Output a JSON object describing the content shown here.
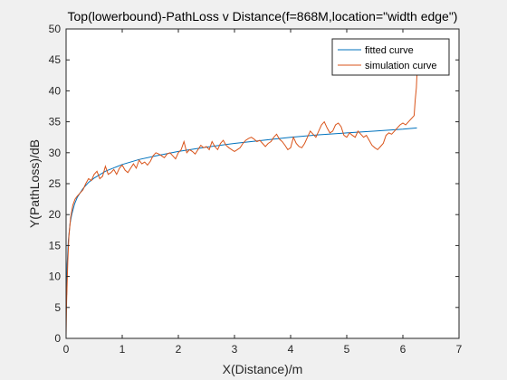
{
  "chart_data": {
    "type": "line",
    "title": "Top(lowerbound)-PathLoss v Distance(f=868M,location=\"width edge\")",
    "xlabel": "X(Distance)/m",
    "ylabel": "Y(PathLoss)/dB",
    "xlim": [
      0,
      7
    ],
    "ylim": [
      0,
      50
    ],
    "xticks": [
      0,
      1,
      2,
      3,
      4,
      5,
      6,
      7
    ],
    "yticks": [
      0,
      5,
      10,
      15,
      20,
      25,
      30,
      35,
      40,
      45,
      50
    ],
    "grid": false,
    "legend_position": "top-right",
    "series": [
      {
        "name": "fitted curve",
        "color": "#0072BD",
        "x": [
          0.01,
          0.02,
          0.04,
          0.07,
          0.1,
          0.15,
          0.2,
          0.3,
          0.4,
          0.5,
          0.7,
          1.0,
          1.3,
          1.6,
          2.0,
          2.5,
          3.0,
          3.5,
          4.0,
          4.5,
          5.0,
          5.5,
          6.0,
          6.25
        ],
        "y": [
          7.0,
          12.0,
          15.8,
          18.5,
          20.0,
          21.7,
          22.8,
          24.2,
          25.2,
          25.9,
          27.0,
          28.1,
          28.9,
          29.5,
          30.2,
          30.9,
          31.5,
          32.0,
          32.5,
          32.9,
          33.2,
          33.5,
          33.8,
          34.0
        ]
      },
      {
        "name": "simulation curve",
        "color": "#D95319",
        "x": [
          0.0,
          0.01,
          0.03,
          0.05,
          0.08,
          0.12,
          0.16,
          0.2,
          0.25,
          0.3,
          0.35,
          0.4,
          0.45,
          0.5,
          0.55,
          0.6,
          0.65,
          0.7,
          0.75,
          0.8,
          0.85,
          0.9,
          0.95,
          1.0,
          1.05,
          1.1,
          1.15,
          1.2,
          1.25,
          1.3,
          1.35,
          1.4,
          1.45,
          1.5,
          1.55,
          1.6,
          1.65,
          1.7,
          1.75,
          1.8,
          1.85,
          1.9,
          1.95,
          2.0,
          2.05,
          2.1,
          2.15,
          2.2,
          2.25,
          2.3,
          2.35,
          2.4,
          2.45,
          2.5,
          2.55,
          2.6,
          2.65,
          2.7,
          2.75,
          2.8,
          2.85,
          2.9,
          2.95,
          3.0,
          3.05,
          3.1,
          3.15,
          3.2,
          3.25,
          3.3,
          3.35,
          3.4,
          3.45,
          3.5,
          3.55,
          3.6,
          3.65,
          3.7,
          3.75,
          3.8,
          3.85,
          3.9,
          3.95,
          4.0,
          4.05,
          4.1,
          4.15,
          4.2,
          4.25,
          4.3,
          4.35,
          4.4,
          4.45,
          4.5,
          4.55,
          4.6,
          4.65,
          4.7,
          4.75,
          4.8,
          4.85,
          4.9,
          4.95,
          5.0,
          5.05,
          5.1,
          5.15,
          5.2,
          5.25,
          5.3,
          5.35,
          5.4,
          5.45,
          5.5,
          5.55,
          5.6,
          5.65,
          5.7,
          5.75,
          5.8,
          5.85,
          5.9,
          5.95,
          6.0,
          6.05,
          6.1,
          6.15,
          6.2,
          6.22,
          6.24,
          6.25
        ],
        "y": [
          0.5,
          6.0,
          12.5,
          16.5,
          19.5,
          21.5,
          22.5,
          23.0,
          23.5,
          24.0,
          25.0,
          25.8,
          25.5,
          26.5,
          27.0,
          25.8,
          26.2,
          27.8,
          26.5,
          26.8,
          27.3,
          26.5,
          27.5,
          28.0,
          27.2,
          26.8,
          27.5,
          28.2,
          27.5,
          28.8,
          28.2,
          28.5,
          28.0,
          28.6,
          29.5,
          30.0,
          29.8,
          29.5,
          29.2,
          29.8,
          30.0,
          29.5,
          29.0,
          30.0,
          30.5,
          31.8,
          30.0,
          30.5,
          30.2,
          29.8,
          30.5,
          31.2,
          30.8,
          31.0,
          30.5,
          31.8,
          31.0,
          30.5,
          31.5,
          32.0,
          31.2,
          30.8,
          30.5,
          30.2,
          30.5,
          30.8,
          31.5,
          32.0,
          32.3,
          32.5,
          32.2,
          31.8,
          32.0,
          31.5,
          31.0,
          31.5,
          31.8,
          32.5,
          33.0,
          32.2,
          31.8,
          31.2,
          30.5,
          30.8,
          32.5,
          31.5,
          31.0,
          30.8,
          31.5,
          32.5,
          33.5,
          33.0,
          32.5,
          33.5,
          34.5,
          35.0,
          34.0,
          33.2,
          33.5,
          34.5,
          34.8,
          34.2,
          32.8,
          32.5,
          33.2,
          32.8,
          32.5,
          33.5,
          33.0,
          32.5,
          32.8,
          32.0,
          31.2,
          30.8,
          30.5,
          31.0,
          31.5,
          32.8,
          33.2,
          33.0,
          33.5,
          34.0,
          34.5,
          34.8,
          34.5,
          35.0,
          35.5,
          36.0,
          38.5,
          40.5,
          42.5
        ]
      }
    ]
  }
}
